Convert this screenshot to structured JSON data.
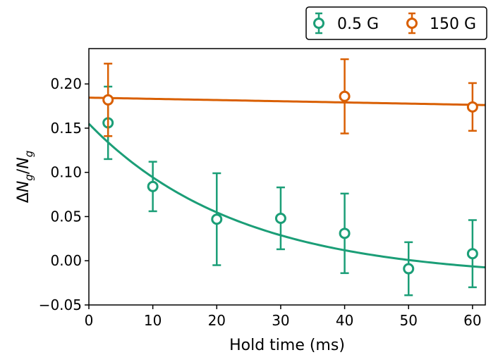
{
  "chart_data": {
    "type": "scatter",
    "xlabel": "Hold time (ms)",
    "ylabel": "ΔN_g/N_g",
    "ylabel_parts": {
      "delta": "Δ",
      "n1": "N",
      "sub1": "g",
      "slash": "/",
      "n2": "N",
      "sub2": "g"
    },
    "xlim": [
      0,
      62
    ],
    "ylim": [
      -0.05,
      0.24
    ],
    "xticks": [
      0,
      10,
      20,
      30,
      40,
      50,
      60
    ],
    "yticks": [
      -0.05,
      0.0,
      0.05,
      0.1,
      0.15,
      0.2
    ],
    "xtick_labels": [
      "0",
      "10",
      "20",
      "30",
      "40",
      "50",
      "60"
    ],
    "ytick_labels": [
      "−0.05",
      "0.00",
      "0.05",
      "0.10",
      "0.15",
      "0.20"
    ],
    "legend_position": "top-right, above plot",
    "series": [
      {
        "name": "0.5 G",
        "color": "#1b9e77",
        "marker": "open-circle",
        "x": [
          3,
          10,
          20,
          30,
          40,
          50,
          60
        ],
        "y": [
          0.156,
          0.084,
          0.047,
          0.048,
          0.031,
          -0.009,
          0.008
        ],
        "err": [
          0.041,
          0.028,
          0.052,
          0.035,
          0.045,
          0.03,
          0.038
        ],
        "fit": {
          "model": "exponential",
          "a": 0.175,
          "tau": 23.5,
          "c": -0.02
        }
      },
      {
        "name": "150 G",
        "color": "#d95f02",
        "marker": "open-circle",
        "x": [
          3,
          40,
          60
        ],
        "y": [
          0.182,
          0.186,
          0.174
        ],
        "err": [
          0.041,
          0.042,
          0.027
        ],
        "fit": {
          "model": "linear",
          "intercept": 0.1845,
          "slope": -0.000135
        }
      }
    ]
  }
}
